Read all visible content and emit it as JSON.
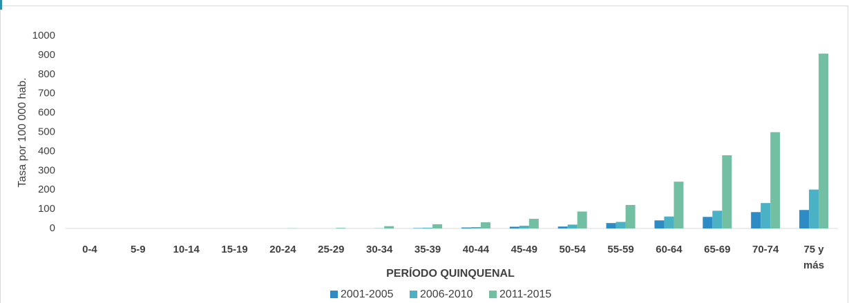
{
  "chart_data": {
    "type": "bar",
    "y_label": "Tasa por 100 000 hab.",
    "x_label": "PERÍODO QUINQUENAL",
    "categories": [
      "0-4",
      "5-9",
      "10-14",
      "15-19",
      "20-24",
      "25-29",
      "30-34",
      "35-39",
      "40-44",
      "45-49",
      "50-54",
      "55-59",
      "60-64",
      "65-69",
      "70-74",
      "75 y más"
    ],
    "series": [
      {
        "name": "2001-2005",
        "color": "#2e8bc4",
        "values": [
          0,
          0,
          0,
          0,
          0,
          0,
          0,
          2,
          5,
          9,
          10,
          28,
          42,
          60,
          85,
          96
        ]
      },
      {
        "name": "2006-2010",
        "color": "#4bb2c5",
        "values": [
          0,
          0,
          0,
          0,
          0,
          0,
          1,
          4,
          7,
          14,
          20,
          34,
          62,
          92,
          132,
          202
        ]
      },
      {
        "name": "2011-2015",
        "color": "#72bfa4",
        "values": [
          0,
          0,
          0,
          0,
          1,
          3,
          12,
          22,
          32,
          50,
          88,
          122,
          243,
          380,
          500,
          908
        ]
      }
    ],
    "ylim": [
      0,
      1000
    ],
    "yticks": [
      0,
      100,
      200,
      300,
      400,
      500,
      600,
      700,
      800,
      900,
      1000
    ],
    "grid": false,
    "legend": "bottom"
  }
}
